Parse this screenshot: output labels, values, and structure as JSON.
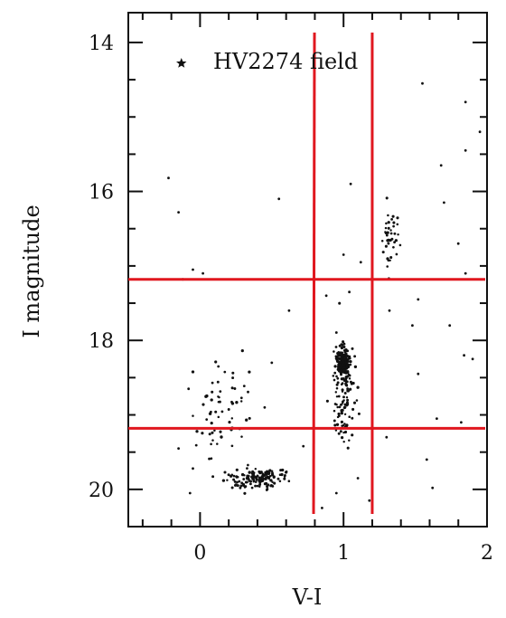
{
  "chart_data": {
    "type": "scatter",
    "annotation": "HV2274 field",
    "xlabel": "V-I",
    "ylabel": "I magnitude",
    "xlim": [
      -0.5,
      2.0
    ],
    "ylim": [
      20.5,
      13.6
    ],
    "y_inverted": true,
    "xticks_labeled": [
      "0",
      "1",
      "2"
    ],
    "yticks_labeled": [
      "14",
      "16",
      "18",
      "20"
    ],
    "grid": false,
    "legend": "none",
    "highlighted_star": {
      "x": -0.13,
      "y": 14.28
    },
    "reference_lines": {
      "color": "#e0171f",
      "vertical_x": [
        0.81,
        1.2
      ],
      "horizontal_y": [
        17.18,
        19.18
      ]
    },
    "points": [
      [
        -0.22,
        15.82
      ],
      [
        -0.15,
        16.28
      ],
      [
        -0.12,
        17.18
      ],
      [
        -0.05,
        17.05
      ],
      [
        0.02,
        17.1
      ],
      [
        0.55,
        16.1
      ],
      [
        1.55,
        14.55
      ],
      [
        1.85,
        14.8
      ],
      [
        1.85,
        15.45
      ],
      [
        1.95,
        15.2
      ],
      [
        1.68,
        15.65
      ],
      [
        1.7,
        16.15
      ],
      [
        1.8,
        16.7
      ],
      [
        1.85,
        17.1
      ],
      [
        1.74,
        17.8
      ],
      [
        1.84,
        18.2
      ],
      [
        1.9,
        18.25
      ],
      [
        1.52,
        18.45
      ],
      [
        1.65,
        19.05
      ],
      [
        1.82,
        19.1
      ],
      [
        1.58,
        19.6
      ],
      [
        1.62,
        19.98
      ],
      [
        1.52,
        17.45
      ],
      [
        1.32,
        17.6
      ],
      [
        1.48,
        17.8
      ],
      [
        -0.08,
        18.65
      ],
      [
        -0.15,
        19.45
      ],
      [
        -0.05,
        19.72
      ],
      [
        -0.07,
        20.05
      ],
      [
        1.05,
        15.9
      ],
      [
        0.62,
        17.6
      ],
      [
        0.5,
        18.3
      ],
      [
        0.45,
        18.9
      ],
      [
        0.72,
        19.42
      ],
      [
        0.85,
        20.25
      ],
      [
        1.18,
        20.15
      ],
      [
        1.1,
        19.85
      ],
      [
        0.95,
        20.05
      ],
      [
        1.3,
        19.3
      ],
      [
        0.88,
        17.4
      ],
      [
        1.0,
        16.85
      ],
      [
        1.12,
        16.95
      ],
      [
        1.04,
        17.35
      ]
    ]
  }
}
